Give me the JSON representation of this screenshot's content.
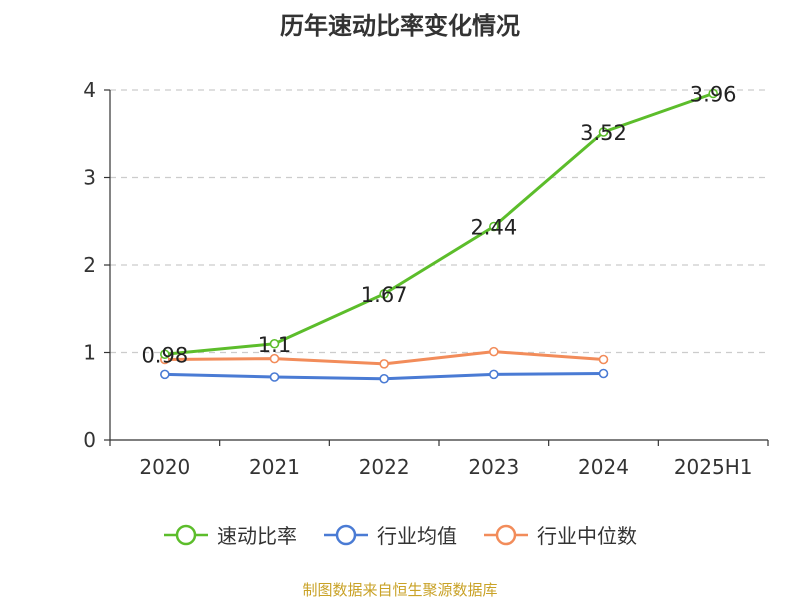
{
  "title": "历年速动比率变化情况",
  "source": "制图数据来自恒生聚源数据库",
  "colors": {
    "series_green": "#5cbd2b",
    "series_blue": "#4a7bd4",
    "series_orange": "#f28c5a",
    "grid": "#cccccc",
    "axis": "#333333",
    "source_text": "#c9a227"
  },
  "chart_data": {
    "type": "line",
    "title": "历年速动比率变化情况",
    "categories": [
      "2020",
      "2021",
      "2022",
      "2023",
      "2024",
      "2025H1"
    ],
    "y_ticks": [
      "0",
      "1",
      "2",
      "3",
      "4"
    ],
    "ylim": [
      0,
      4
    ],
    "grid": "horizontal dashed",
    "legend_position": "bottom",
    "series": [
      {
        "name": "速动比率",
        "color": "#5cbd2b",
        "values": [
          0.98,
          1.1,
          1.67,
          2.44,
          3.52,
          3.96
        ],
        "labels": [
          "0.98",
          "1.1",
          "1.67",
          "2.44",
          "3.52",
          "3.96"
        ]
      },
      {
        "name": "行业均值",
        "color": "#4a7bd4",
        "values": [
          0.75,
          0.72,
          0.7,
          0.75,
          0.76,
          null
        ]
      },
      {
        "name": "行业中位数",
        "color": "#f28c5a",
        "values": [
          0.92,
          0.93,
          0.87,
          1.01,
          0.92,
          null
        ]
      }
    ]
  }
}
